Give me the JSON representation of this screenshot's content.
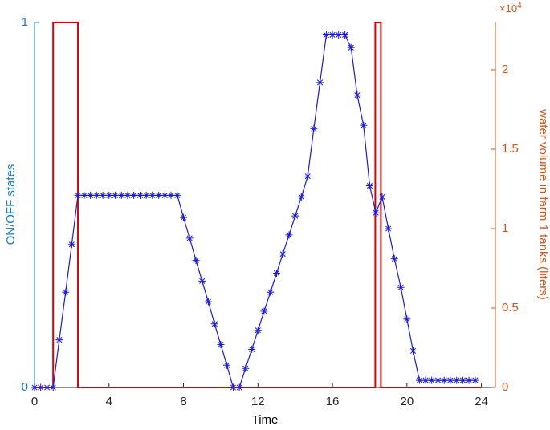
{
  "chart_data": {
    "type": "line",
    "xlabel": "Time",
    "ylabel": "ON/OFF states",
    "y2label": "water volume in farm 1 tanks (liters)",
    "y2_exponent": {
      "base": "×10",
      "power": "4"
    },
    "xlim": [
      0,
      24.75
    ],
    "xticks": [
      0,
      4,
      8,
      12,
      16,
      20,
      24
    ],
    "ylim": [
      0,
      1
    ],
    "yticks": [
      0,
      1
    ],
    "y2lim": [
      0,
      2.298
    ],
    "y2ticks": [
      0,
      0.5,
      1,
      1.5,
      2
    ],
    "left_axis_color": "#1a7fc4",
    "right_axis_color": "#d95319",
    "series": [
      {
        "color": "#e00000",
        "axis": "y",
        "marker": "none",
        "x": [
          0,
          1,
          1,
          2.33,
          2.33,
          18.3,
          18.3,
          18.6,
          18.6,
          24
        ],
        "values": [
          0,
          0,
          1,
          1,
          0,
          0,
          1,
          1,
          0,
          0
        ]
      },
      {
        "color": "#1a1ae6",
        "axis": "y2",
        "marker": "asterisk",
        "x": [
          0,
          0.33,
          0.67,
          1,
          1.33,
          1.67,
          2,
          2.33,
          2.67,
          3,
          3.33,
          3.67,
          4,
          4.33,
          4.67,
          5,
          5.33,
          5.67,
          6,
          6.33,
          6.67,
          7,
          7.33,
          7.67,
          8,
          8.33,
          8.67,
          9,
          9.33,
          9.67,
          10,
          10.33,
          10.67,
          11,
          11.33,
          11.67,
          12,
          12.33,
          12.67,
          13,
          13.33,
          13.67,
          14,
          14.33,
          14.67,
          15,
          15.33,
          15.67,
          16,
          16.33,
          16.67,
          17,
          17.33,
          17.67,
          18,
          18.33,
          18.67,
          19,
          19.33,
          19.67,
          20,
          20.33,
          20.67,
          21,
          21.33,
          21.67,
          22,
          22.33,
          22.67,
          23,
          23.33,
          23.67
        ],
        "values": [
          0,
          0,
          0,
          0,
          0.3,
          0.6,
          0.9,
          1.21,
          1.21,
          1.21,
          1.21,
          1.21,
          1.21,
          1.21,
          1.21,
          1.21,
          1.21,
          1.21,
          1.21,
          1.21,
          1.21,
          1.21,
          1.21,
          1.21,
          1.07,
          0.94,
          0.8,
          0.67,
          0.54,
          0.4,
          0.27,
          0.14,
          0,
          0,
          0.12,
          0.24,
          0.36,
          0.48,
          0.6,
          0.72,
          0.84,
          0.96,
          1.08,
          1.2,
          1.33,
          1.63,
          1.92,
          2.22,
          2.22,
          2.22,
          2.22,
          2.14,
          1.84,
          1.65,
          1.27,
          1.1,
          1.2,
          1,
          0.81,
          0.63,
          0.43,
          0.23,
          0.045,
          0.045,
          0.045,
          0.045,
          0.045,
          0.045,
          0.045,
          0.045,
          0.045,
          0.045
        ]
      }
    ]
  }
}
